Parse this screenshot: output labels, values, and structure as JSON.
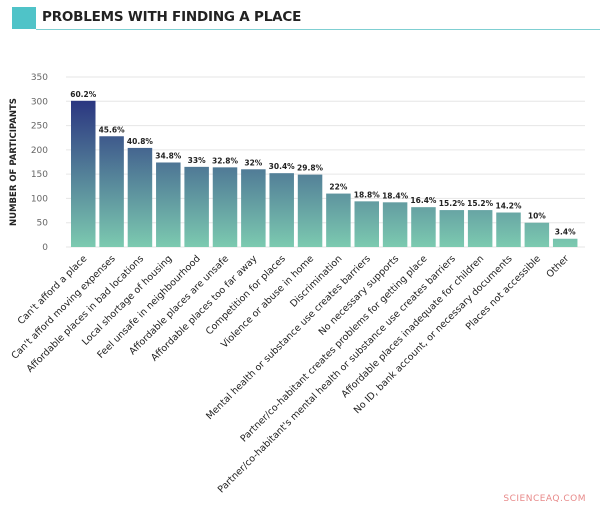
{
  "header": {
    "title": "PROBLEMS WITH FINDING A PLACE",
    "accent": "#4fc3c8"
  },
  "watermark": "SCIENCEAQ.COM",
  "chart_data": {
    "type": "bar",
    "title": "PROBLEMS WITH FINDING A PLACE",
    "xlabel": "",
    "ylabel": "NUMBER OF PARTICIPANTS",
    "ylim": [
      0,
      350
    ],
    "yticks": [
      0,
      50,
      100,
      150,
      200,
      250,
      300,
      350
    ],
    "grid": true,
    "gradient": [
      "#2a3580",
      "#7ccab0"
    ],
    "categories": [
      "Can't afford a place",
      "Can't afford moving expenses",
      "Affordable places in bad locations",
      "Local shortage of housing",
      "Feel unsafe in neighbourhood",
      "Affordable places are unsafe",
      "Affordable places too far away",
      "Competition for places",
      "Violence or abuse in home",
      "Discrimination",
      "Mental health or substance use creates barriers",
      "No necessary supports",
      "Partner/co-habitant creates problems for getting place",
      "Partner/co-habitant's mental health or substance use creates barriers",
      "Affordable places inadequate for children",
      "No ID, bank account, or necessary documents",
      "Places not accessible",
      "Other"
    ],
    "values": [
      301,
      228,
      204,
      174,
      165,
      164,
      160,
      152,
      149,
      110,
      94,
      92,
      82,
      76,
      76,
      71,
      50,
      17
    ],
    "data_labels": [
      "60.2%",
      "45.6%",
      "40.8%",
      "34.8%",
      "33%",
      "32.8%",
      "32%",
      "30.4%",
      "29.8%",
      "22%",
      "18.8%",
      "18.4%",
      "16.4%",
      "15.2%",
      "15.2%",
      "14.2%",
      "10%",
      "3.4%"
    ]
  }
}
